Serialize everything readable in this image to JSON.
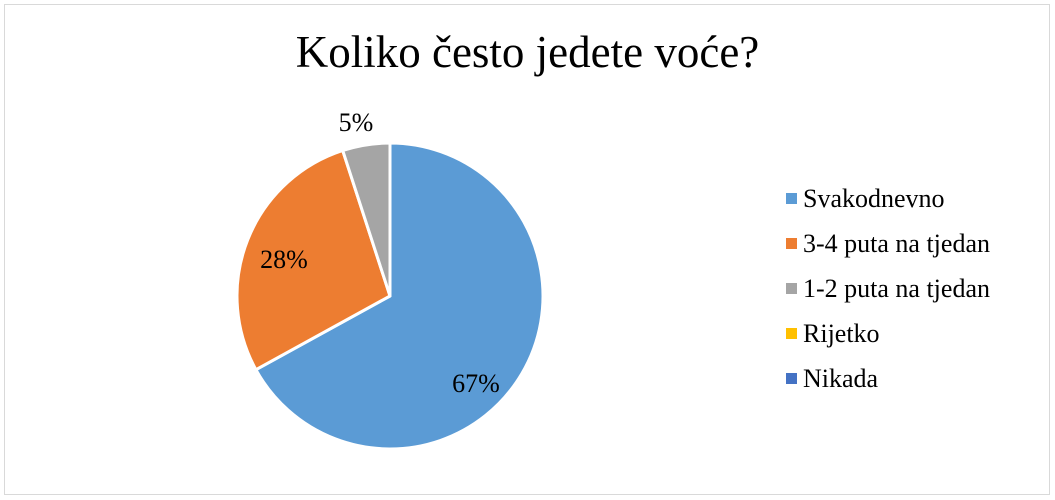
{
  "chart_data": {
    "type": "pie",
    "title": "Koliko često jedete voće?",
    "categories": [
      "Svakodnevno",
      "3-4 puta na tjedan",
      "1-2 puta na tjedan",
      "Rijetko",
      "Nikada"
    ],
    "values": [
      67,
      28,
      5,
      0,
      0
    ],
    "data_labels": [
      "67%",
      "28%",
      "5%",
      "",
      ""
    ],
    "colors": [
      "#5b9bd5",
      "#ed7d31",
      "#a5a5a5",
      "#ffc000",
      "#4472c4"
    ],
    "legend_position": "right"
  }
}
